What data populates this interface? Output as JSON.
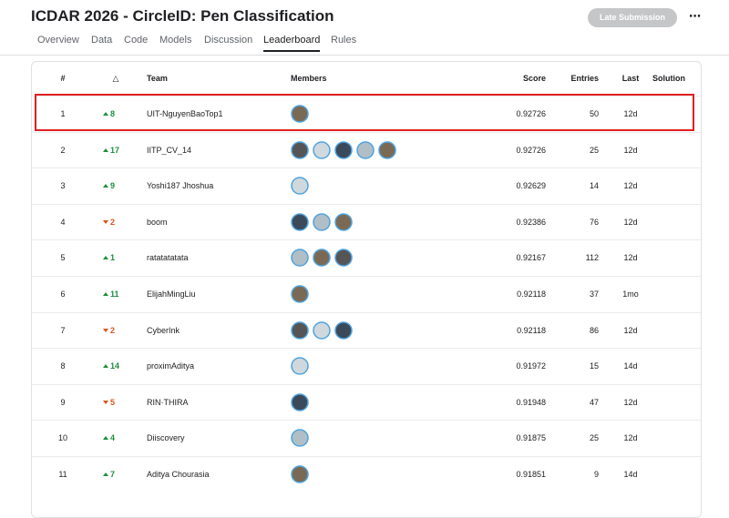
{
  "header": {
    "title": "ICDAR 2026 - CircleID: Pen Classification",
    "button": "Late Submission",
    "menu": "⋯"
  },
  "tabs": [
    {
      "label": "Overview"
    },
    {
      "label": "Data"
    },
    {
      "label": "Code"
    },
    {
      "label": "Models"
    },
    {
      "label": "Discussion"
    },
    {
      "label": "Leaderboard",
      "active": true
    },
    {
      "label": "Rules"
    }
  ],
  "table": {
    "columns": [
      "#",
      "△",
      "Team",
      "Members",
      "Score",
      "Entries",
      "Last",
      "Solution"
    ],
    "rows": [
      {
        "rank": 1,
        "change": 8,
        "direction": "up",
        "team": "UIT-NguyenBaoTop1",
        "members": 1,
        "score": 0.92726,
        "entries": 50,
        "last": "12d",
        "highlighted": true
      },
      {
        "rank": 2,
        "change": 17,
        "direction": "up",
        "team": "IITP_CV_14",
        "members": 5,
        "score": 0.92726,
        "entries": 25,
        "last": "12d"
      },
      {
        "rank": 3,
        "change": 9,
        "direction": "up",
        "team": "Yoshi187 Jhoshua",
        "members": 1,
        "score": 0.92629,
        "entries": 14,
        "last": "12d"
      },
      {
        "rank": 4,
        "change": 2,
        "direction": "down",
        "team": "boom",
        "members": 3,
        "score": 0.92386,
        "entries": 76,
        "last": "12d"
      },
      {
        "rank": 5,
        "change": 1,
        "direction": "up",
        "team": "ratatatatata",
        "members": 3,
        "score": 0.92167,
        "entries": 112,
        "last": "12d"
      },
      {
        "rank": 6,
        "change": 11,
        "direction": "up",
        "team": "ElijahMingLiu",
        "members": 1,
        "score": 0.92118,
        "entries": 37,
        "last": "1mo"
      },
      {
        "rank": 7,
        "change": 2,
        "direction": "down",
        "team": "CyberInk",
        "members": 3,
        "score": 0.92118,
        "entries": 86,
        "last": "12d"
      },
      {
        "rank": 8,
        "change": 14,
        "direction": "up",
        "team": "proximAditya",
        "members": 1,
        "score": 0.91972,
        "entries": 15,
        "last": "14d"
      },
      {
        "rank": 9,
        "change": 5,
        "direction": "down",
        "team": "RIN·THIRA",
        "members": 1,
        "score": 0.91948,
        "entries": 47,
        "last": "12d"
      },
      {
        "rank": 10,
        "change": 4,
        "direction": "up",
        "team": "Diiscovery",
        "members": 1,
        "score": 0.91875,
        "entries": 25,
        "last": "12d"
      },
      {
        "rank": 11,
        "change": 7,
        "direction": "up",
        "team": "Aditya Chourasia",
        "members": 1,
        "score": 0.91851,
        "entries": 9,
        "last": "14d"
      }
    ]
  }
}
